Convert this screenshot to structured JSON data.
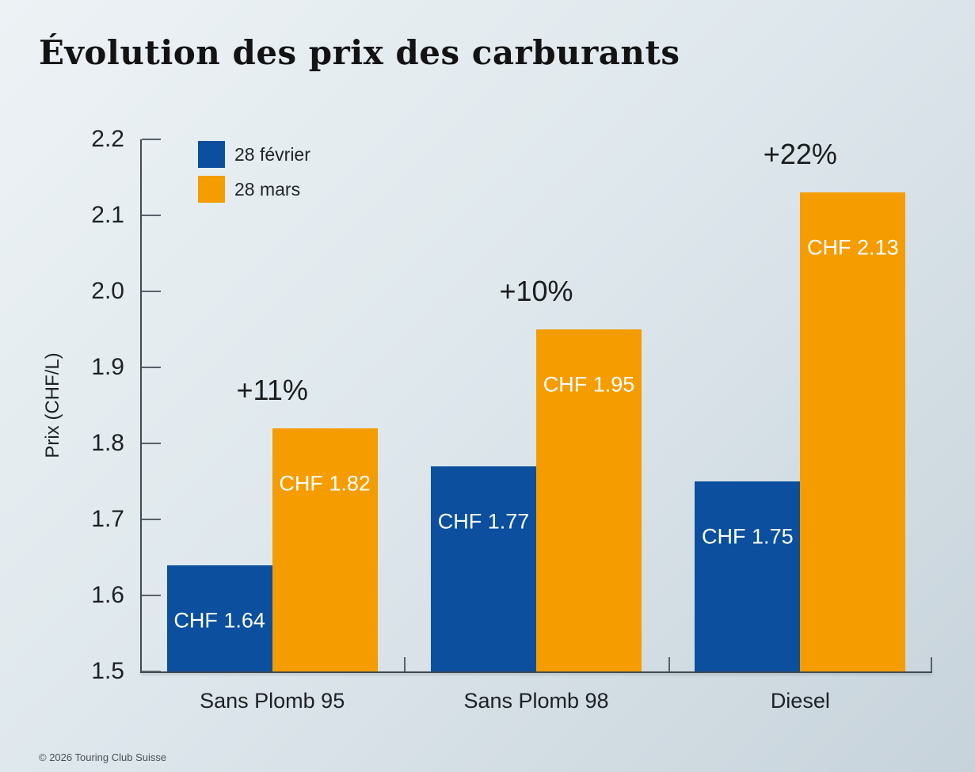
{
  "page": {
    "title": "Évolution des prix des carburants",
    "footer": "© 2026 Touring Club Suisse"
  },
  "legend": {
    "items": [
      {
        "label": "28 février",
        "color": "#0b4f9e"
      },
      {
        "label": "28 mars",
        "color": "#f59c00"
      }
    ]
  },
  "chart_data": {
    "type": "bar",
    "title": "Évolution des prix des carburants",
    "categories": [
      "Sans Plomb 95",
      "Sans Plomb 98",
      "Diesel"
    ],
    "series": [
      {
        "name": "28 février",
        "color": "#0b4f9e",
        "values": [
          1.64,
          1.77,
          1.75
        ],
        "labels": [
          "CHF 1.64",
          "CHF 1.77",
          "CHF 1.75"
        ]
      },
      {
        "name": "28 mars",
        "color": "#f59c00",
        "values": [
          1.82,
          1.95,
          2.13
        ],
        "labels": [
          "CHF 1.82",
          "CHF 1.95",
          "CHF 2.13"
        ]
      }
    ],
    "annotations": [
      "+11%",
      "+10%",
      "+22%"
    ],
    "xlabel": "",
    "ylabel": "Prix (CHF/L)",
    "ylim": [
      1.5,
      2.2
    ],
    "yticks": [
      "2.2",
      "2.1",
      "2.0",
      "1.9",
      "1.8",
      "1.7",
      "1.6",
      "1.5"
    ],
    "grid": false,
    "legend_position": "upper-left-inside"
  },
  "colors": {
    "background_top": "#edf2f5",
    "background_bottom": "#c7d3db",
    "axis": "#3f4a52",
    "tick": "#57616a",
    "text": "#1d2125",
    "bar_label_text": "#ffffff",
    "series_blue": "#0b4f9e",
    "series_orange": "#f59c00"
  }
}
